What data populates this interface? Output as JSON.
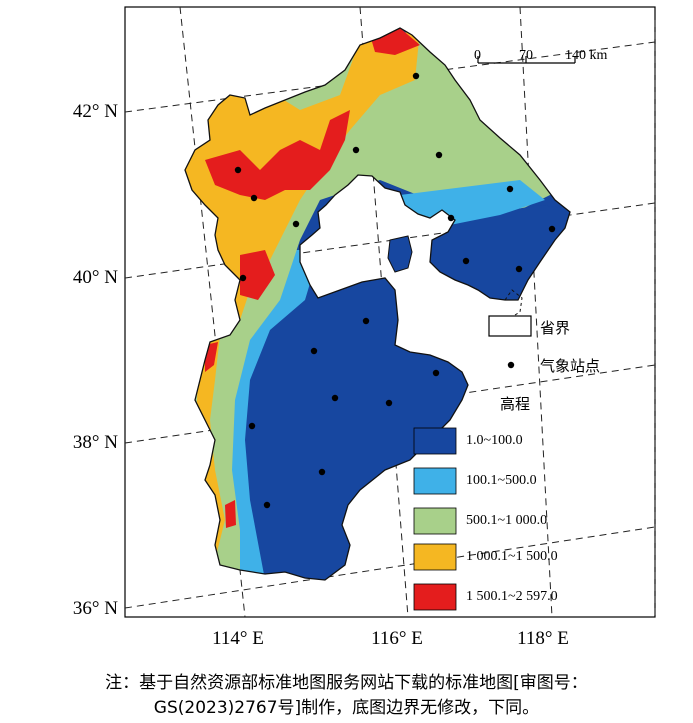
{
  "latitudes": [
    "42° N",
    "40° N",
    "38° N",
    "36° N"
  ],
  "longitudes": [
    "114° E",
    "116° E",
    "118° E"
  ],
  "scale": {
    "ticks": [
      "0",
      "70",
      "140 km"
    ]
  },
  "legend": {
    "boundary_label": "省界",
    "station_label": "气象站点",
    "elevation_title": "高程",
    "classes": [
      {
        "label": "1.0~100.0",
        "color": "#1747a0"
      },
      {
        "label": "100.1~500.0",
        "color": "#3fb1e8"
      },
      {
        "label": "500.1~1 000.0",
        "color": "#a8d08a"
      },
      {
        "label": "1 000.1~1 500.0",
        "color": "#f5b722"
      },
      {
        "label": "1 500.1~2 597.0",
        "color": "#e41d1d"
      }
    ]
  },
  "note": {
    "line1": "注：基于自然资源部标准地图服务网站下载的标准地图[审图号：",
    "line2": "GS(2023)2767号]制作，底图边界无修改，下同。"
  }
}
